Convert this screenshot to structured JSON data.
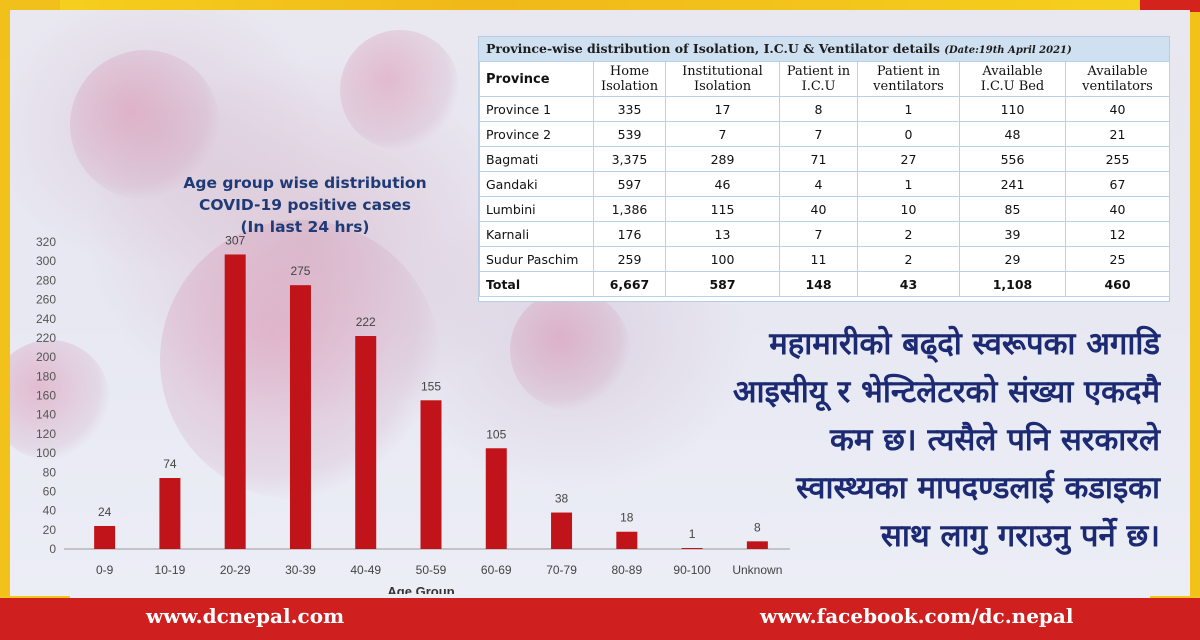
{
  "footer": {
    "left_url": "www.dcnepal.com",
    "right_url": "www.facebook.com/dc.nepal"
  },
  "colors": {
    "bar": "#c0141a",
    "title": "#1f3b77",
    "footer": "#cf1f1f",
    "frame": "#f2c21a",
    "nepali_text": "#1c2a73"
  },
  "chart_data": {
    "type": "bar",
    "title": "Age group wise distribution COVID-19 positive cases",
    "subtitle": "(In last 24 hrs)",
    "xlabel": "Age Group",
    "ylabel": "",
    "categories": [
      "0-9",
      "10-19",
      "20-29",
      "30-39",
      "40-49",
      "50-59",
      "60-69",
      "70-79",
      "80-89",
      "90-100",
      "Unknown"
    ],
    "values": [
      24,
      74,
      307,
      275,
      222,
      155,
      105,
      38,
      18,
      1,
      8
    ],
    "ylim": [
      0,
      320
    ],
    "yticks": [
      0,
      20,
      40,
      60,
      80,
      100,
      120,
      140,
      160,
      180,
      200,
      220,
      240,
      260,
      280,
      300,
      320
    ],
    "grid": false,
    "data_labels": true
  },
  "table": {
    "caption": "Province-wise distribution of Isolation, I.C.U & Ventilator details",
    "date_note": "(Date:19th April 2021)",
    "headers": [
      [
        "Province"
      ],
      [
        "Home",
        "Isolation"
      ],
      [
        "Institutional",
        "Isolation"
      ],
      [
        "Patient in",
        "I.C.U"
      ],
      [
        "Patient in",
        "ventilators"
      ],
      [
        "Available",
        "I.C.U Bed"
      ],
      [
        "Available",
        "ventilators"
      ]
    ],
    "rows": [
      [
        "Province 1",
        "335",
        "17",
        "8",
        "1",
        "110",
        "40"
      ],
      [
        "Province 2",
        "539",
        "7",
        "7",
        "0",
        "48",
        "21"
      ],
      [
        "Bagmati",
        "3,375",
        "289",
        "71",
        "27",
        "556",
        "255"
      ],
      [
        "Gandaki",
        "597",
        "46",
        "4",
        "1",
        "241",
        "67"
      ],
      [
        "Lumbini",
        "1,386",
        "115",
        "40",
        "10",
        "85",
        "40"
      ],
      [
        "Karnali",
        "176",
        "13",
        "7",
        "2",
        "39",
        "12"
      ],
      [
        "Sudur Paschim",
        "259",
        "100",
        "11",
        "2",
        "29",
        "25"
      ]
    ],
    "total": [
      "Total",
      "6,667",
      "587",
      "148",
      "43",
      "1,108",
      "460"
    ]
  },
  "nepali_text": [
    "महामारीको बढ्दो स्वरूपका अगाडि",
    "आइसीयू र भेन्टिलेटरको संख्या एकदमै",
    "कम छ। त्यसैले पनि सरकारले",
    "स्वास्थ्यका मापदण्डलाई कडाइका",
    "साथ लागु गराउनु पर्ने छ।"
  ]
}
